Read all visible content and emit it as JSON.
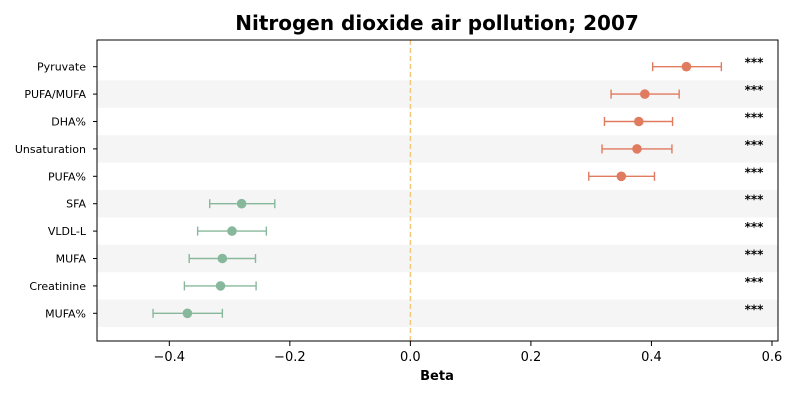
{
  "chart_data": {
    "type": "forest",
    "title": "Nitrogen dioxide air pollution; 2007",
    "xlabel": "Beta",
    "xlim": [
      -0.52,
      0.61
    ],
    "xticks": [
      -0.4,
      -0.2,
      0.0,
      0.2,
      0.4,
      0.6
    ],
    "xtick_labels": [
      "−0.4",
      "−0.2",
      "0.0",
      "0.2",
      "0.4",
      "0.6"
    ],
    "reference_line": 0.0,
    "colors": {
      "positive": "#e07b5f",
      "negative": "#88b89c",
      "reference": "#f5c77e",
      "band": "#f5f5f5"
    },
    "rows": [
      {
        "label": "Pyruvate",
        "beta": 0.458,
        "lower": 0.402,
        "upper": 0.516,
        "sig": "***"
      },
      {
        "label": "PUFA/MUFA",
        "beta": 0.389,
        "lower": 0.333,
        "upper": 0.446,
        "sig": "***"
      },
      {
        "label": "DHA%",
        "beta": 0.379,
        "lower": 0.322,
        "upper": 0.435,
        "sig": "***"
      },
      {
        "label": "Unsaturation",
        "beta": 0.376,
        "lower": 0.318,
        "upper": 0.434,
        "sig": "***"
      },
      {
        "label": "PUFA%",
        "beta": 0.35,
        "lower": 0.296,
        "upper": 0.405,
        "sig": "***"
      },
      {
        "label": "SFA",
        "beta": -0.28,
        "lower": -0.333,
        "upper": -0.225,
        "sig": "***"
      },
      {
        "label": "VLDL-L",
        "beta": -0.296,
        "lower": -0.353,
        "upper": -0.239,
        "sig": "***"
      },
      {
        "label": "MUFA",
        "beta": -0.312,
        "lower": -0.367,
        "upper": -0.257,
        "sig": "***"
      },
      {
        "label": "Creatinine",
        "beta": -0.315,
        "lower": -0.375,
        "upper": -0.256,
        "sig": "***"
      },
      {
        "label": "MUFA%",
        "beta": -0.37,
        "lower": -0.427,
        "upper": -0.312,
        "sig": "***"
      }
    ]
  }
}
